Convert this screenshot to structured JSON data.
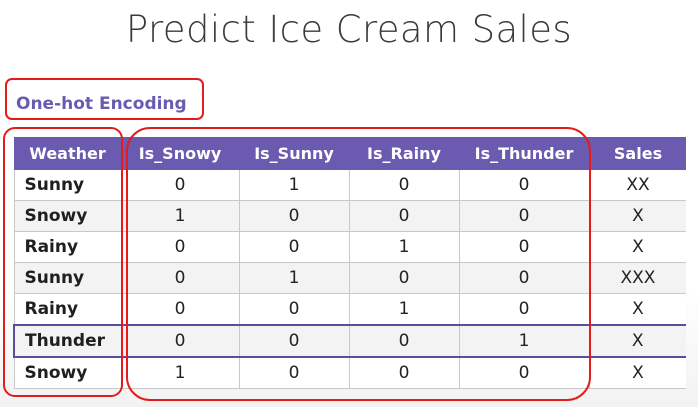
{
  "title": "Predict Ice Cream Sales",
  "subtitle": "One-hot Encoding",
  "colors": {
    "header_bg": "#6b5bb0",
    "subtitle": "#6b5bb0",
    "annotation": "#e41b1b",
    "highlight_border": "#5a4e9a"
  },
  "table": {
    "columns": [
      "Weather",
      "Is_Snowy",
      "Is_Sunny",
      "Is_Rainy",
      "Is_Thunder",
      "Sales"
    ],
    "rows": [
      [
        "Sunny",
        "0",
        "1",
        "0",
        "0",
        "XX"
      ],
      [
        "Snowy",
        "1",
        "0",
        "0",
        "0",
        "X"
      ],
      [
        "Rainy",
        "0",
        "0",
        "1",
        "0",
        "X"
      ],
      [
        "Sunny",
        "0",
        "1",
        "0",
        "0",
        "XXX"
      ],
      [
        "Rainy",
        "0",
        "0",
        "1",
        "0",
        "X"
      ],
      [
        "Thunder",
        "0",
        "0",
        "0",
        "1",
        "X"
      ],
      [
        "Snowy",
        "1",
        "0",
        "0",
        "0",
        "X"
      ]
    ],
    "highlighted_row": 5
  }
}
